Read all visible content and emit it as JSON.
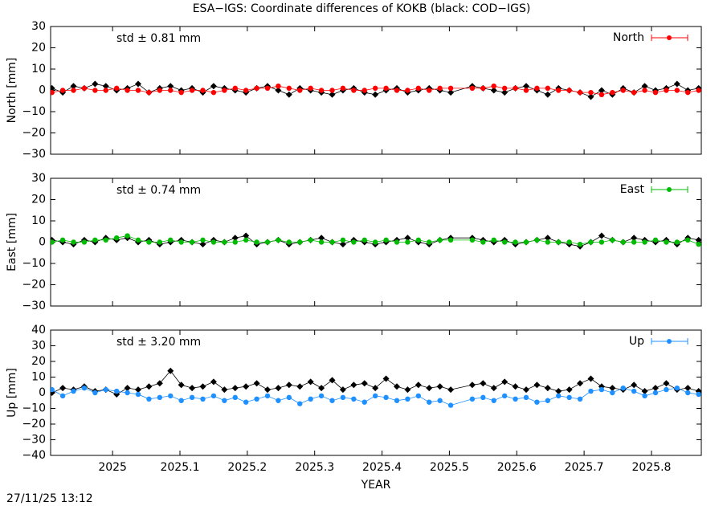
{
  "title": "ESA−IGS: Coordinate differences of KOKB (black: COD−IGS)",
  "timestamp": "27/11/25 13:12",
  "chart_data": [
    {
      "type": "line",
      "ylabel": "North [mm]",
      "annotation": "std ± 0.81 mm",
      "annotation_color": "#ff0000",
      "xlim": [
        2024.908,
        2025.874
      ],
      "xticks": [
        2025,
        2025.1,
        2025.2,
        2025.3,
        2025.4,
        2025.5,
        2025.6,
        2025.7,
        2025.8
      ],
      "ylim": [
        -30,
        30
      ],
      "yticks": [
        {
          "value": -30,
          "label": "−30"
        },
        {
          "value": -20,
          "label": "−20"
        },
        {
          "value": -10,
          "label": "−10"
        },
        0,
        10,
        20,
        30
      ],
      "legend": "upper right",
      "x": [
        2024.91,
        2024.926,
        2024.942,
        2024.958,
        2024.974,
        2024.99,
        2025.006,
        2025.022,
        2025.038,
        2025.054,
        2025.07,
        2025.086,
        2025.102,
        2025.118,
        2025.134,
        2025.15,
        2025.166,
        2025.182,
        2025.198,
        2025.214,
        2025.23,
        2025.246,
        2025.262,
        2025.278,
        2025.294,
        2025.31,
        2025.326,
        2025.342,
        2025.358,
        2025.374,
        2025.39,
        2025.406,
        2025.422,
        2025.438,
        2025.454,
        2025.47,
        2025.486,
        2025.502,
        2025.534,
        2025.55,
        2025.566,
        2025.582,
        2025.598,
        2025.614,
        2025.63,
        2025.646,
        2025.662,
        2025.678,
        2025.694,
        2025.71,
        2025.726,
        2025.742,
        2025.758,
        2025.774,
        2025.79,
        2025.806,
        2025.822,
        2025.838,
        2025.854,
        2025.87
      ],
      "series": [
        {
          "color": "#000000",
          "values": [
            1,
            -1,
            2,
            1,
            3,
            2,
            0,
            1,
            3,
            -1,
            1,
            2,
            0,
            1,
            -1,
            2,
            1,
            0,
            -1,
            1,
            2,
            0,
            -2,
            1,
            0,
            -1,
            -2,
            0,
            1,
            -1,
            -2,
            0,
            1,
            -1,
            0,
            1,
            0,
            -1,
            2,
            1,
            0,
            -1,
            1,
            2,
            0,
            -2,
            1,
            0,
            -1,
            -3,
            0,
            -2,
            1,
            -1,
            2,
            0,
            1,
            3,
            0,
            1
          ]
        },
        {
          "name": "North",
          "color": "#ff0000",
          "values": [
            -1,
            0,
            0,
            1,
            0,
            0,
            1,
            0,
            0,
            -1,
            0,
            0,
            -1,
            0,
            0,
            -1,
            0,
            1,
            0,
            1,
            1,
            2,
            1,
            0,
            1,
            0,
            0,
            1,
            0,
            0,
            1,
            1,
            0,
            0,
            1,
            0,
            1,
            1,
            1,
            1,
            2,
            1,
            1,
            0,
            1,
            1,
            0,
            0,
            -1,
            -1,
            -2,
            -1,
            0,
            -1,
            0,
            -1,
            0,
            0,
            -1,
            0
          ]
        }
      ]
    },
    {
      "type": "line",
      "ylabel": "East [mm]",
      "annotation": "std ± 0.74 mm",
      "annotation_color": "#00bb00",
      "xlim": [
        2024.908,
        2025.874
      ],
      "xticks": [
        2025,
        2025.1,
        2025.2,
        2025.3,
        2025.4,
        2025.5,
        2025.6,
        2025.7,
        2025.8
      ],
      "ylim": [
        -30,
        30
      ],
      "yticks": [
        {
          "value": -30,
          "label": "−30"
        },
        {
          "value": -20,
          "label": "−20"
        },
        {
          "value": -10,
          "label": "−10"
        },
        0,
        10,
        20,
        30
      ],
      "legend": "upper right",
      "x": [
        2024.91,
        2024.926,
        2024.942,
        2024.958,
        2024.974,
        2024.99,
        2025.006,
        2025.022,
        2025.038,
        2025.054,
        2025.07,
        2025.086,
        2025.102,
        2025.118,
        2025.134,
        2025.15,
        2025.166,
        2025.182,
        2025.198,
        2025.214,
        2025.23,
        2025.246,
        2025.262,
        2025.278,
        2025.294,
        2025.31,
        2025.326,
        2025.342,
        2025.358,
        2025.374,
        2025.39,
        2025.406,
        2025.422,
        2025.438,
        2025.454,
        2025.47,
        2025.486,
        2025.502,
        2025.534,
        2025.55,
        2025.566,
        2025.582,
        2025.598,
        2025.614,
        2025.63,
        2025.646,
        2025.662,
        2025.678,
        2025.694,
        2025.71,
        2025.726,
        2025.742,
        2025.758,
        2025.774,
        2025.79,
        2025.806,
        2025.822,
        2025.838,
        2025.854,
        2025.87
      ],
      "series": [
        {
          "color": "#000000",
          "values": [
            1,
            0,
            -1,
            1,
            0,
            2,
            1,
            2,
            0,
            1,
            -1,
            0,
            1,
            0,
            -1,
            1,
            0,
            2,
            3,
            -1,
            0,
            1,
            -1,
            0,
            1,
            2,
            0,
            -1,
            1,
            0,
            -1,
            0,
            1,
            2,
            0,
            -1,
            1,
            2,
            2,
            1,
            0,
            1,
            -1,
            0,
            1,
            2,
            0,
            -1,
            -2,
            0,
            3,
            1,
            0,
            2,
            1,
            0,
            1,
            -1,
            2,
            1
          ]
        },
        {
          "name": "East",
          "color": "#00bb00",
          "values": [
            0,
            1,
            0,
            0,
            1,
            1,
            2,
            3,
            1,
            0,
            0,
            1,
            0,
            0,
            1,
            0,
            0,
            0,
            1,
            0,
            0,
            1,
            0,
            0,
            1,
            0,
            0,
            1,
            0,
            1,
            0,
            1,
            0,
            0,
            1,
            0,
            1,
            1,
            1,
            0,
            1,
            0,
            0,
            0,
            1,
            0,
            0,
            0,
            -1,
            0,
            0,
            1,
            0,
            0,
            0,
            1,
            0,
            0,
            1,
            -1
          ]
        }
      ]
    },
    {
      "type": "line",
      "ylabel": "Up [mm]",
      "xlabel": "YEAR",
      "annotation": "std ± 3.20 mm",
      "annotation_color": "#1e90ff",
      "xlim": [
        2024.908,
        2025.874
      ],
      "xticks": [
        2025,
        2025.1,
        2025.2,
        2025.3,
        2025.4,
        2025.5,
        2025.6,
        2025.7,
        2025.8
      ],
      "ylim": [
        -40,
        40
      ],
      "yticks": [
        {
          "value": -40,
          "label": "−40"
        },
        {
          "value": -30,
          "label": "−30"
        },
        {
          "value": -20,
          "label": "−20"
        },
        {
          "value": -10,
          "label": "−10"
        },
        0,
        10,
        20,
        30,
        40
      ],
      "legend": "upper right",
      "x": [
        2024.91,
        2024.926,
        2024.942,
        2024.958,
        2024.974,
        2024.99,
        2025.006,
        2025.022,
        2025.038,
        2025.054,
        2025.07,
        2025.086,
        2025.102,
        2025.118,
        2025.134,
        2025.15,
        2025.166,
        2025.182,
        2025.198,
        2025.214,
        2025.23,
        2025.246,
        2025.262,
        2025.278,
        2025.294,
        2025.31,
        2025.326,
        2025.342,
        2025.358,
        2025.374,
        2025.39,
        2025.406,
        2025.422,
        2025.438,
        2025.454,
        2025.47,
        2025.486,
        2025.502,
        2025.534,
        2025.55,
        2025.566,
        2025.582,
        2025.598,
        2025.614,
        2025.63,
        2025.646,
        2025.662,
        2025.678,
        2025.694,
        2025.71,
        2025.726,
        2025.742,
        2025.758,
        2025.774,
        2025.79,
        2025.806,
        2025.822,
        2025.838,
        2025.854,
        2025.87
      ],
      "series": [
        {
          "color": "#000000",
          "values": [
            0,
            3,
            2,
            4,
            1,
            2,
            -1,
            3,
            2,
            4,
            6,
            14,
            5,
            3,
            4,
            7,
            2,
            3,
            4,
            6,
            2,
            3,
            5,
            4,
            7,
            3,
            8,
            2,
            5,
            6,
            3,
            9,
            4,
            2,
            5,
            3,
            4,
            2,
            5,
            6,
            3,
            7,
            4,
            2,
            5,
            3,
            1,
            2,
            6,
            9,
            4,
            3,
            2,
            5,
            1,
            3,
            6,
            2,
            3,
            1
          ]
        },
        {
          "name": "Up",
          "color": "#1e90ff",
          "values": [
            2,
            -2,
            1,
            3,
            0,
            2,
            1,
            0,
            -1,
            -4,
            -3,
            -2,
            -5,
            -3,
            -4,
            -2,
            -5,
            -3,
            -6,
            -4,
            -2,
            -5,
            -3,
            -7,
            -4,
            -2,
            -5,
            -3,
            -4,
            -6,
            -2,
            -3,
            -5,
            -4,
            -2,
            -6,
            -5,
            -8,
            -4,
            -3,
            -5,
            -2,
            -4,
            -3,
            -6,
            -5,
            -2,
            -3,
            -4,
            1,
            2,
            0,
            3,
            1,
            -2,
            0,
            2,
            3,
            0,
            -1
          ]
        }
      ]
    }
  ]
}
